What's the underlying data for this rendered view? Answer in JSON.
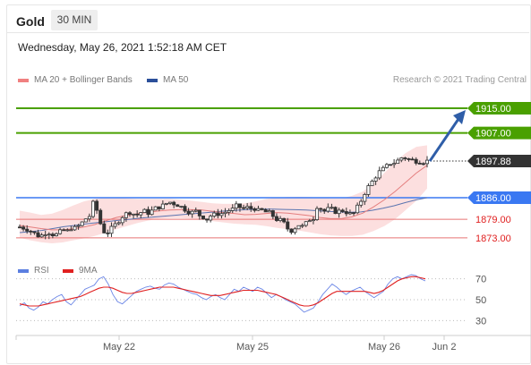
{
  "header": {
    "instrument": "Gold",
    "timeframe": "30 MIN",
    "datetime": "Wednesday, May 26, 2021 1:52:18 AM CET"
  },
  "legend": {
    "items": [
      {
        "label": "MA 20 + Bollinger Bands",
        "color": "#f08080"
      },
      {
        "label": "MA 50",
        "color": "#2b4f9a"
      }
    ],
    "copyright": "Research © 2021 Trading Central"
  },
  "rsi_legend": {
    "items": [
      {
        "label": "RSI",
        "color": "#5b7fe0"
      },
      {
        "label": "9MA",
        "color": "#e02020"
      }
    ]
  },
  "chart_data": [
    {
      "type": "candlestick",
      "x_ticks": [
        "May 22",
        "May 25",
        "May 26",
        "Jun 2"
      ],
      "ylim": [
        1869,
        1918
      ],
      "close_path": [
        1876.5,
        1876.2,
        1875.8,
        1875.0,
        1874.2,
        1873.5,
        1874.0,
        1875.2,
        1874.4,
        1873.8,
        1874.5,
        1875.6,
        1874.9,
        1876.3,
        1876.0,
        1876.8,
        1878.0,
        1879.4,
        1880.2,
        1885.5,
        1880.2,
        1876.0,
        1874.2,
        1875.5,
        1876.6,
        1878.2,
        1879.8,
        1880.6,
        1881.5,
        1880.8,
        1880.5,
        1881.3,
        1881.6,
        1881.0,
        1882.0,
        1882.8,
        1883.2,
        1883.6,
        1884.8,
        1884.2,
        1884.0,
        1883.2,
        1882.4,
        1881.6,
        1881.2,
        1881.6,
        1880.2,
        1879.7,
        1878.9,
        1880.6,
        1880.3,
        1881.2,
        1880.6,
        1882.2,
        1881.6,
        1883.3,
        1883.0,
        1882.5,
        1882.8,
        1882.5,
        1882.6,
        1881.6,
        1881.9,
        1881.2,
        1881.0,
        1879.6,
        1878.6,
        1878.6,
        1876.5,
        1875.2,
        1875.9,
        1877.4,
        1876.5,
        1877.5,
        1879.0,
        1879.5,
        1883.7,
        1882.2,
        1881.5,
        1882.5,
        1882.0,
        1881.2,
        1882.0,
        1881.7,
        1880.8,
        1880.5,
        1882.4,
        1884.7,
        1887.5,
        1889.5,
        1891.3,
        1893.2,
        1894.6,
        1895.4,
        1896.5,
        1897.6,
        1897.2,
        1898.8,
        1899.2,
        1898.5,
        1898.2,
        1898.0,
        1897.9,
        1897.7,
        1897.88
      ],
      "levels": [
        {
          "label": "1915.00",
          "value": 1915.0,
          "kind": "target"
        },
        {
          "label": "1907.00",
          "value": 1907.0,
          "kind": "target"
        },
        {
          "label": "1897.88",
          "value": 1897.88,
          "kind": "last"
        },
        {
          "label": "1886.00",
          "value": 1886.0,
          "kind": "pivot"
        },
        {
          "label": "1879.00",
          "value": 1879.0,
          "kind": "support"
        },
        {
          "label": "1873.00",
          "value": 1873.0,
          "kind": "support"
        }
      ],
      "forecast_arrow": {
        "from": 1897.88,
        "to": 1915.0
      },
      "ma20_path": [
        1877.0,
        1876.5,
        1876.0,
        1875.6,
        1875.6,
        1875.9,
        1876.5,
        1877.3,
        1878.5,
        1879.6,
        1880.3,
        1880.8,
        1881.3,
        1881.7,
        1882.0,
        1882.1,
        1882.1,
        1882.0,
        1881.6,
        1881.2,
        1880.9,
        1880.5,
        1880.6,
        1880.9,
        1881.2,
        1881.0,
        1880.6,
        1880.2,
        1879.6,
        1879.2,
        1879.2,
        1879.8,
        1881.0,
        1883.0,
        1885.3,
        1888.0,
        1891.0,
        1894.0,
        1896.5
      ],
      "ma50_path": [
        1874.7,
        1875.0,
        1875.4,
        1876.0,
        1876.6,
        1877.0,
        1877.5,
        1877.9,
        1878.3,
        1878.7,
        1879.0,
        1879.4,
        1879.7,
        1880.0,
        1880.3,
        1880.6,
        1880.9,
        1881.2,
        1881.5,
        1881.8,
        1882.0,
        1882.2,
        1882.3,
        1882.3,
        1882.2,
        1882.1,
        1882.0,
        1881.8,
        1881.6,
        1881.4,
        1881.3,
        1881.4,
        1881.9,
        1882.6,
        1883.4,
        1884.4,
        1885.3,
        1886.0
      ],
      "bb_upper": [
        1881.8,
        1881.2,
        1880.4,
        1880.8,
        1882.0,
        1883.5,
        1884.8,
        1885.6,
        1886.0,
        1886.0,
        1885.8,
        1885.6,
        1885.6,
        1885.6,
        1885.6,
        1885.4,
        1885.0,
        1884.6,
        1884.2,
        1884.0,
        1884.0,
        1884.2,
        1884.8,
        1885.6,
        1886.0,
        1886.2,
        1886.3,
        1886.2,
        1886.0,
        1885.8,
        1885.8,
        1886.6,
        1888.0,
        1890.6,
        1894.0,
        1897.5,
        1900.5,
        1902.5,
        1903.0
      ],
      "bb_lower": [
        1873.0,
        1872.2,
        1871.6,
        1871.2,
        1871.5,
        1872.2,
        1872.8,
        1873.6,
        1874.6,
        1875.8,
        1876.8,
        1877.8,
        1878.6,
        1879.2,
        1879.4,
        1879.4,
        1879.2,
        1879.0,
        1878.4,
        1878.0,
        1877.6,
        1877.4,
        1877.2,
        1876.8,
        1876.2,
        1875.8,
        1875.4,
        1874.8,
        1874.2,
        1873.8,
        1873.6,
        1873.6,
        1874.0,
        1875.2,
        1876.8,
        1879.0,
        1882.0,
        1885.0,
        1889.0
      ]
    },
    {
      "type": "line",
      "title": "RSI",
      "series": [
        {
          "name": "RSI",
          "values": [
            44,
            47,
            42,
            40,
            43,
            48,
            46,
            50,
            53,
            55,
            48,
            45,
            50,
            55,
            60,
            62,
            64,
            70,
            72,
            65,
            55,
            48,
            46,
            50,
            54,
            58,
            60,
            62,
            63,
            61,
            60,
            64,
            66,
            65,
            62,
            60,
            58,
            56,
            55,
            52,
            50,
            53,
            55,
            52,
            50,
            55,
            60,
            58,
            62,
            60,
            58,
            62,
            60,
            56,
            52,
            55,
            53,
            50,
            48,
            46,
            42,
            38,
            40,
            42,
            48,
            55,
            60,
            65,
            62,
            58,
            55,
            58,
            60,
            62,
            58,
            55,
            52,
            55,
            58,
            65,
            70,
            72,
            70,
            72,
            74,
            73,
            70,
            68
          ]
        },
        {
          "name": "9MA",
          "values": [
            46,
            45,
            44,
            44,
            44,
            45,
            46,
            47,
            48,
            49,
            50,
            51,
            52,
            53,
            55,
            57,
            59,
            61,
            62,
            62,
            61,
            59,
            57,
            56,
            56,
            57,
            58,
            59,
            60,
            61,
            62,
            62,
            62,
            62,
            61,
            60,
            59,
            58,
            57,
            56,
            55,
            54,
            54,
            54,
            55,
            56,
            57,
            58,
            59,
            59,
            59,
            59,
            58,
            57,
            56,
            55,
            53,
            51,
            49,
            47,
            45,
            44,
            44,
            45,
            47,
            50,
            53,
            56,
            58,
            58,
            58,
            58,
            58,
            58,
            58,
            57,
            56,
            57,
            59,
            62,
            65,
            68,
            70,
            71,
            72,
            72,
            71,
            70
          ]
        }
      ],
      "y_ticks": [
        "70",
        "50",
        "30"
      ],
      "ylim": [
        20,
        80
      ]
    }
  ]
}
